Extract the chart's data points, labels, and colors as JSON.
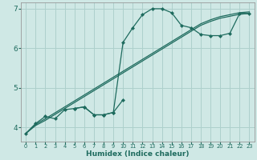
{
  "xlabel": "Humidex (Indice chaleur)",
  "bg_color": "#cfe8e5",
  "grid_color": "#add0cc",
  "line_color": "#1e6b5e",
  "xlim": [
    -0.5,
    23.5
  ],
  "ylim": [
    3.65,
    7.15
  ],
  "xticks": [
    0,
    1,
    2,
    3,
    4,
    5,
    6,
    7,
    8,
    9,
    10,
    11,
    12,
    13,
    14,
    15,
    16,
    17,
    18,
    19,
    20,
    21,
    22,
    23
  ],
  "yticks": [
    4,
    5,
    6,
    7
  ],
  "curve_x": [
    0,
    1,
    2,
    3,
    4,
    5,
    6,
    7,
    8,
    9,
    10,
    11,
    12,
    13,
    14,
    15,
    16,
    17,
    18,
    19,
    20,
    21,
    22,
    23
  ],
  "curve_y": [
    3.85,
    4.1,
    4.28,
    4.22,
    4.45,
    4.48,
    4.52,
    4.32,
    4.32,
    4.38,
    6.15,
    6.52,
    6.85,
    7.0,
    7.0,
    6.9,
    6.58,
    6.52,
    6.35,
    6.32,
    6.32,
    6.38,
    6.88,
    6.88
  ],
  "dip_x": [
    5,
    6,
    7,
    8,
    9,
    10
  ],
  "dip_y": [
    4.48,
    4.52,
    4.32,
    4.32,
    4.38,
    4.7
  ],
  "diag1_x": [
    0,
    1,
    2,
    3,
    4,
    5,
    6,
    7,
    8,
    9,
    10,
    11,
    12,
    13,
    14,
    15,
    16,
    17,
    18,
    19,
    20,
    21,
    22,
    23
  ],
  "diag1_y": [
    3.85,
    4.08,
    4.22,
    4.37,
    4.52,
    4.67,
    4.82,
    4.97,
    5.12,
    5.27,
    5.42,
    5.57,
    5.72,
    5.87,
    6.02,
    6.17,
    6.32,
    6.47,
    6.62,
    6.72,
    6.8,
    6.85,
    6.9,
    6.92
  ],
  "diag2_x": [
    0,
    1,
    2,
    3,
    4,
    5,
    6,
    7,
    8,
    9,
    10,
    11,
    12,
    13,
    14,
    15,
    16,
    17,
    18,
    19,
    20,
    21,
    22,
    23
  ],
  "diag2_y": [
    3.85,
    4.05,
    4.18,
    4.33,
    4.48,
    4.63,
    4.78,
    4.93,
    5.08,
    5.23,
    5.38,
    5.53,
    5.68,
    5.83,
    5.98,
    6.13,
    6.28,
    6.43,
    6.58,
    6.68,
    6.76,
    6.81,
    6.86,
    6.88
  ]
}
